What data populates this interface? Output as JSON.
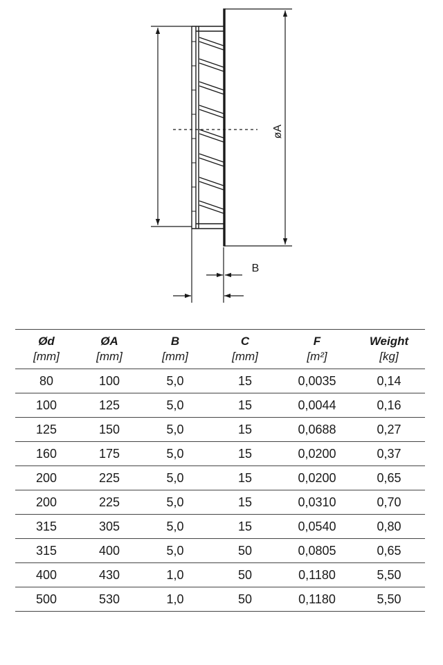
{
  "drawing": {
    "dim_a_label": "øA",
    "dim_b_label": "B"
  },
  "table": {
    "columns": [
      {
        "name": "Ød",
        "unit": "[mm]"
      },
      {
        "name": "ØA",
        "unit": "[mm]"
      },
      {
        "name": "B",
        "unit": "[mm]"
      },
      {
        "name": "C",
        "unit": "[mm]"
      },
      {
        "name": "F",
        "unit": "[m²]"
      },
      {
        "name": "Weight",
        "unit": "[kg]"
      }
    ],
    "rows": [
      [
        "80",
        "100",
        "5,0",
        "15",
        "0,0035",
        "0,14"
      ],
      [
        "100",
        "125",
        "5,0",
        "15",
        "0,0044",
        "0,16"
      ],
      [
        "125",
        "150",
        "5,0",
        "15",
        "0,0688",
        "0,27"
      ],
      [
        "160",
        "175",
        "5,0",
        "15",
        "0,0200",
        "0,37"
      ],
      [
        "200",
        "225",
        "5,0",
        "15",
        "0,0200",
        "0,65"
      ],
      [
        "200",
        "225",
        "5,0",
        "15",
        "0,0310",
        "0,70"
      ],
      [
        "315",
        "305",
        "5,0",
        "15",
        "0,0540",
        "0,80"
      ],
      [
        "315",
        "400",
        "5,0",
        "50",
        "0,0805",
        "0,65"
      ],
      [
        "400",
        "430",
        "1,0",
        "50",
        "0,1180",
        "5,50"
      ],
      [
        "500",
        "530",
        "1,0",
        "50",
        "0,1180",
        "5,50"
      ]
    ]
  }
}
